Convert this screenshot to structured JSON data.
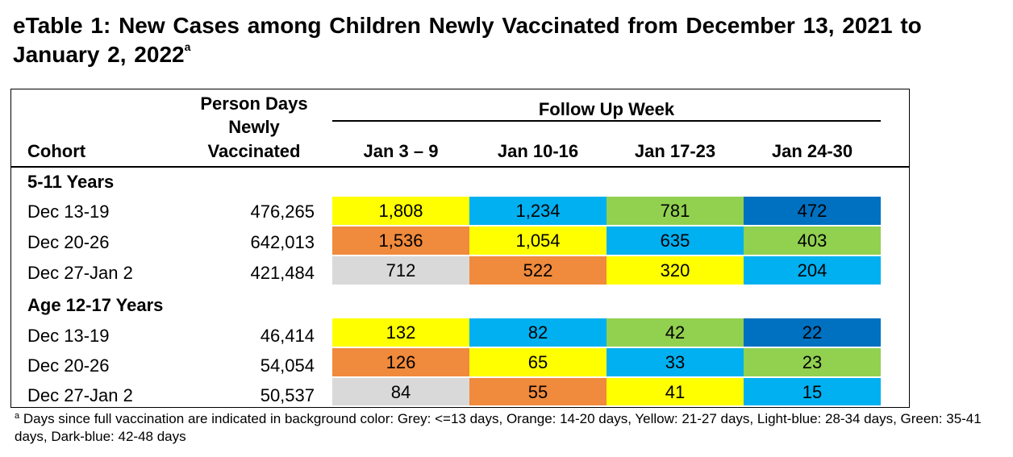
{
  "title": {
    "text": "eTable 1: New Cases among Children Newly Vaccinated from December 13, 2021 to January 2, 2022",
    "superscript": "a"
  },
  "header": {
    "cohort": "Cohort",
    "person_days": [
      "Person Days",
      "Newly",
      "Vaccinated"
    ],
    "follow_up": "Follow Up Week",
    "weeks": [
      "Jan 3 – 9",
      "Jan 10-16",
      "Jan 17-23",
      "Jan 24-30"
    ]
  },
  "colors": {
    "grey": "#d9d9d9",
    "orange": "#f08a3c",
    "yellow": "#ffff00",
    "light_blue": "#00b0f0",
    "green": "#92d050",
    "dark_blue": "#0070c0"
  },
  "groups": [
    {
      "label": "5-11 Years",
      "rows": [
        {
          "cohort": "Dec 13-19",
          "person_days": "476,265",
          "cells": [
            {
              "value": "1,808",
              "color": "yellow"
            },
            {
              "value": "1,234",
              "color": "light_blue"
            },
            {
              "value": "781",
              "color": "green"
            },
            {
              "value": "472",
              "color": "dark_blue"
            }
          ]
        },
        {
          "cohort": "Dec 20-26",
          "person_days": "642,013",
          "cells": [
            {
              "value": "1,536",
              "color": "orange"
            },
            {
              "value": "1,054",
              "color": "yellow"
            },
            {
              "value": "635",
              "color": "light_blue"
            },
            {
              "value": "403",
              "color": "green"
            }
          ]
        },
        {
          "cohort": "Dec 27-Jan 2",
          "person_days": "421,484",
          "cells": [
            {
              "value": "712",
              "color": "grey"
            },
            {
              "value": "522",
              "color": "orange"
            },
            {
              "value": "320",
              "color": "yellow"
            },
            {
              "value": "204",
              "color": "light_blue"
            }
          ]
        }
      ]
    },
    {
      "label": "Age 12-17 Years",
      "rows": [
        {
          "cohort": "Dec 13-19",
          "person_days": "46,414",
          "cells": [
            {
              "value": "132",
              "color": "yellow"
            },
            {
              "value": "82",
              "color": "light_blue"
            },
            {
              "value": "42",
              "color": "green"
            },
            {
              "value": "22",
              "color": "dark_blue"
            }
          ]
        },
        {
          "cohort": "Dec 20-26",
          "person_days": "54,054",
          "cells": [
            {
              "value": "126",
              "color": "orange"
            },
            {
              "value": "65",
              "color": "yellow"
            },
            {
              "value": "33",
              "color": "light_blue"
            },
            {
              "value": "23",
              "color": "green"
            }
          ]
        },
        {
          "cohort": "Dec 27-Jan 2",
          "person_days": "50,537",
          "cells": [
            {
              "value": "84",
              "color": "grey"
            },
            {
              "value": "55",
              "color": "orange"
            },
            {
              "value": "41",
              "color": "yellow"
            },
            {
              "value": "15",
              "color": "light_blue"
            }
          ]
        }
      ]
    }
  ],
  "footnote": {
    "marker": "a",
    "text": " Days since full vaccination are indicated in background color: Grey: <=13 days, Orange: 14-20 days, Yellow: 21-27 days, Light-blue: 28-34 days, Green: 35-41 days, Dark-blue: 42-48 days"
  }
}
